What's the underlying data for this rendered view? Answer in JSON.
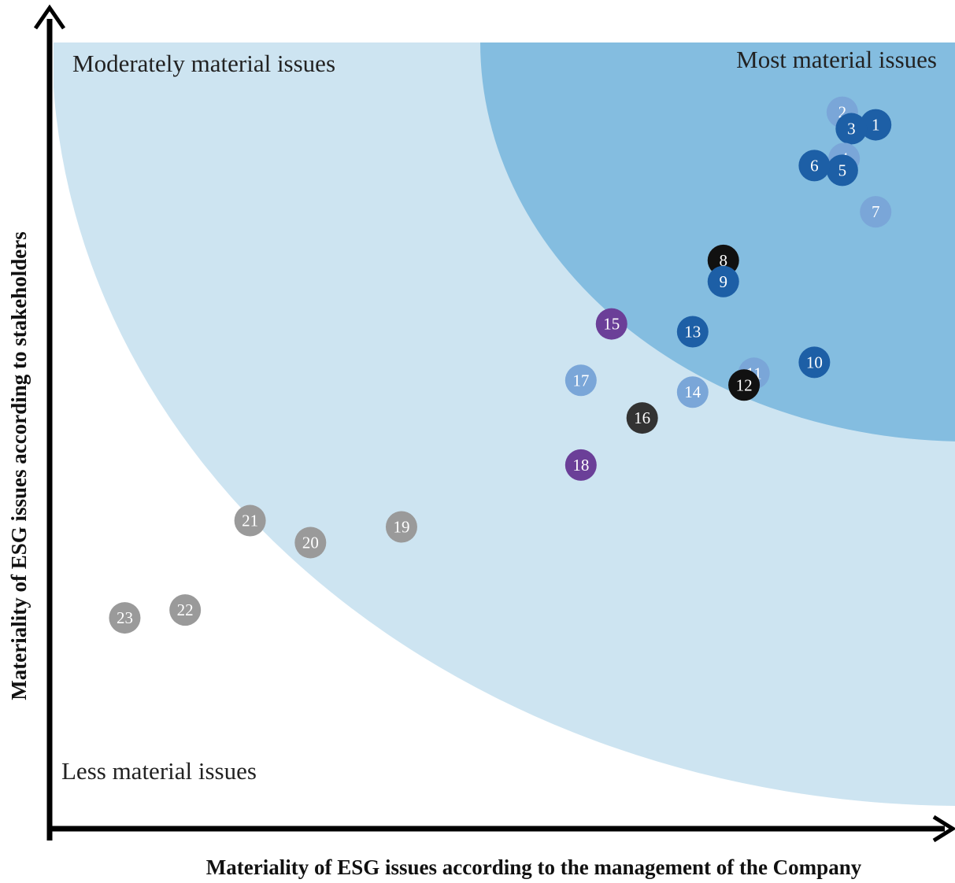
{
  "chart_data": {
    "type": "scatter",
    "title": "",
    "xlabel": "Materiality of ESG issues according to the management of the Company",
    "ylabel": "Materiality of ESG issues according to stakeholders",
    "regions": {
      "most": "Most material issues",
      "moderate": "Moderately material issues",
      "less": "Less material issues"
    },
    "xlim": [
      0,
      100
    ],
    "ylim": [
      0,
      100
    ],
    "grid": false,
    "colors": {
      "dark_blue": "#1d5fa6",
      "light_blue": "#7aa6d8",
      "black": "#111111",
      "dark_gray": "#333333",
      "purple": "#6b3f98",
      "gray": "#9a9a9a",
      "zone_moderate": "#cde4f1",
      "zone_most": "#84bde0"
    },
    "points": [
      {
        "id": "1",
        "x": 91.2,
        "y": 89.5,
        "color": "dark_blue"
      },
      {
        "id": "2",
        "x": 87.5,
        "y": 91.1,
        "color": "light_blue"
      },
      {
        "id": "3",
        "x": 88.5,
        "y": 89.0,
        "color": "dark_blue"
      },
      {
        "id": "4",
        "x": 87.7,
        "y": 85.2,
        "color": "light_blue"
      },
      {
        "id": "5",
        "x": 87.5,
        "y": 83.7,
        "color": "dark_blue"
      },
      {
        "id": "6",
        "x": 84.4,
        "y": 84.3,
        "color": "dark_blue"
      },
      {
        "id": "7",
        "x": 91.2,
        "y": 78.4,
        "color": "light_blue"
      },
      {
        "id": "8",
        "x": 74.3,
        "y": 72.2,
        "color": "black"
      },
      {
        "id": "9",
        "x": 74.3,
        "y": 69.5,
        "color": "dark_blue"
      },
      {
        "id": "10",
        "x": 84.4,
        "y": 59.2,
        "color": "dark_blue"
      },
      {
        "id": "11",
        "x": 77.7,
        "y": 57.8,
        "color": "light_blue"
      },
      {
        "id": "12",
        "x": 76.6,
        "y": 56.3,
        "color": "black"
      },
      {
        "id": "13",
        "x": 70.9,
        "y": 63.1,
        "color": "dark_blue"
      },
      {
        "id": "14",
        "x": 70.9,
        "y": 55.4,
        "color": "light_blue"
      },
      {
        "id": "15",
        "x": 61.9,
        "y": 64.1,
        "color": "purple"
      },
      {
        "id": "16",
        "x": 65.3,
        "y": 52.1,
        "color": "dark_gray"
      },
      {
        "id": "17",
        "x": 58.5,
        "y": 56.9,
        "color": "light_blue"
      },
      {
        "id": "18",
        "x": 58.5,
        "y": 46.1,
        "color": "purple"
      },
      {
        "id": "19",
        "x": 38.6,
        "y": 38.2,
        "color": "gray"
      },
      {
        "id": "20",
        "x": 28.5,
        "y": 36.2,
        "color": "gray"
      },
      {
        "id": "21",
        "x": 21.8,
        "y": 39.0,
        "color": "gray"
      },
      {
        "id": "22",
        "x": 14.6,
        "y": 27.6,
        "color": "gray"
      },
      {
        "id": "23",
        "x": 7.9,
        "y": 26.6,
        "color": "gray"
      }
    ]
  }
}
